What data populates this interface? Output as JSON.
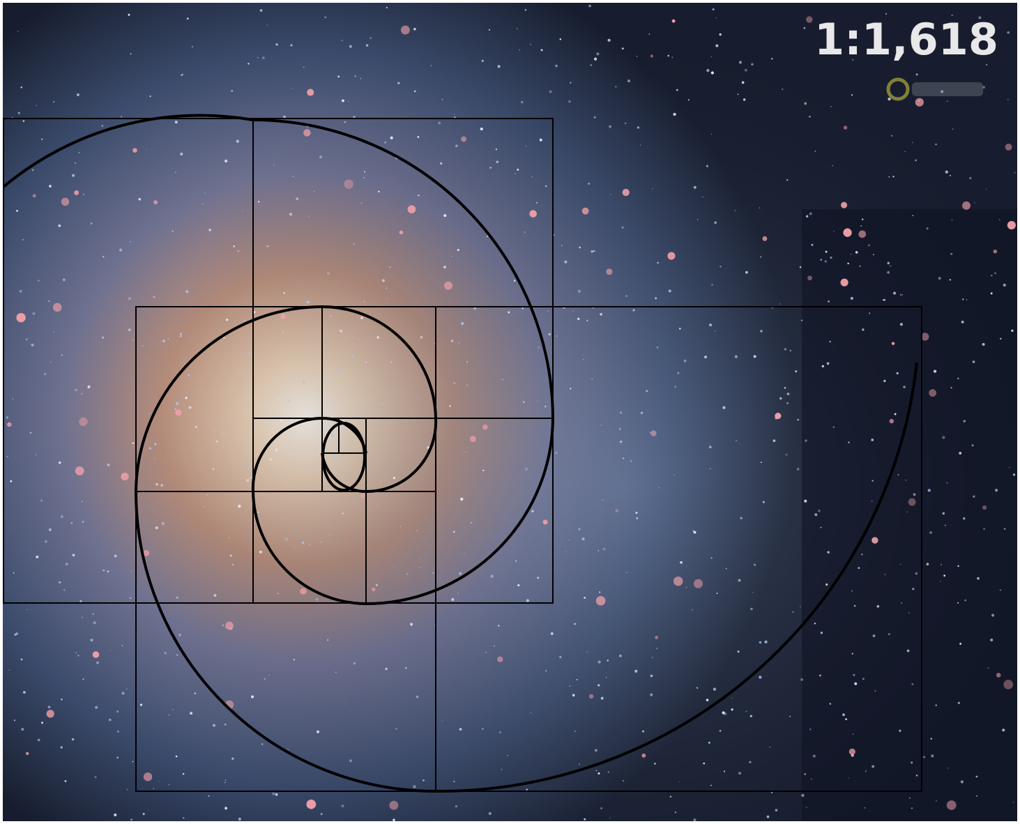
{
  "overlay": {
    "ratio_label": "1:1,618"
  }
}
